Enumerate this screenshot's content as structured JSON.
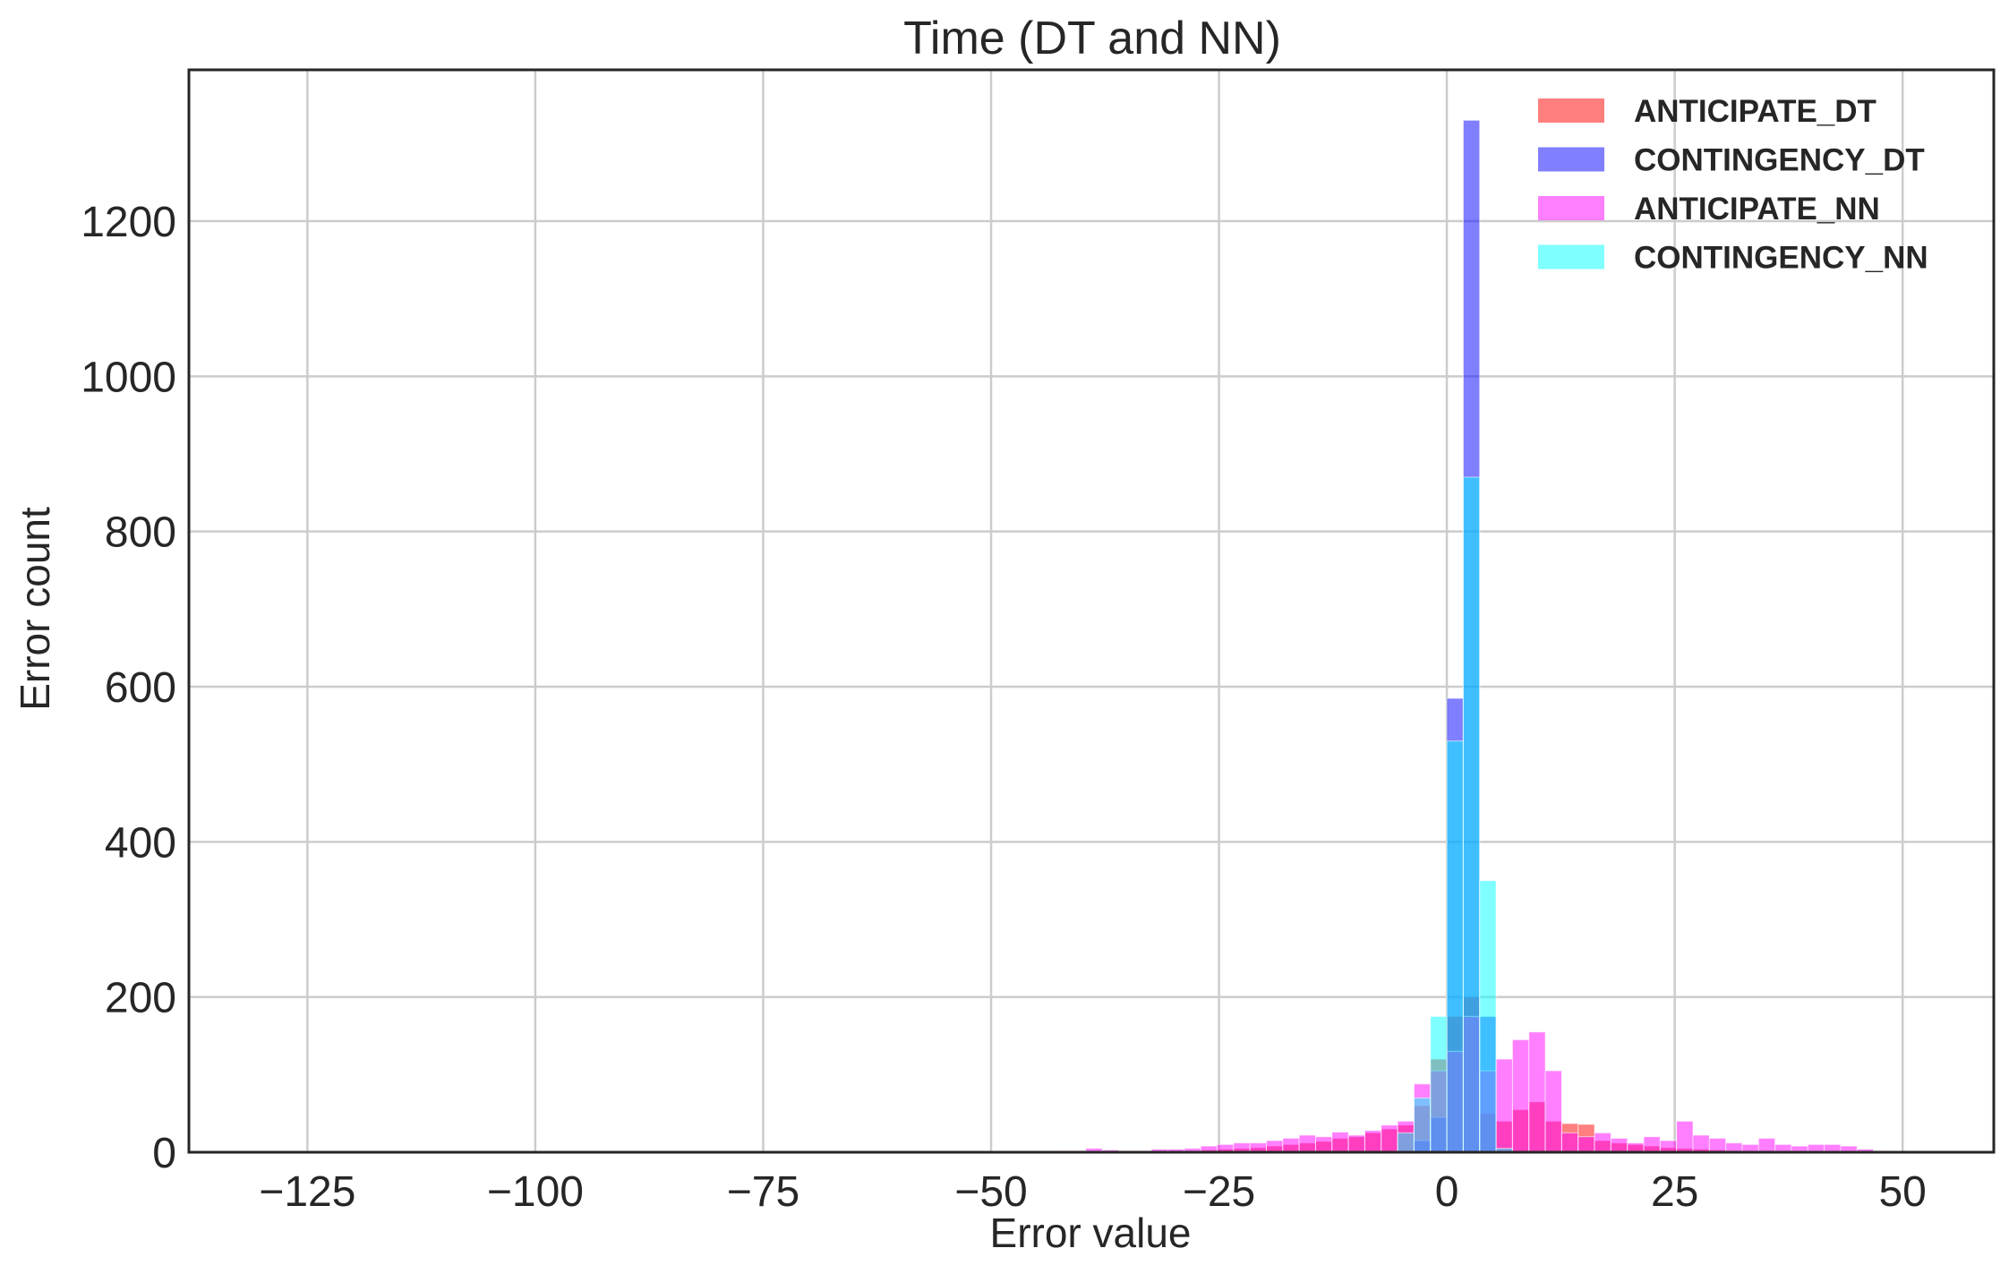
{
  "chart_data": {
    "type": "bar",
    "title": "Time (DT and NN)",
    "xlabel": "Error value",
    "ylabel": "Error count",
    "xlim": [
      -138,
      60
    ],
    "ylim": [
      0,
      1395
    ],
    "xticks": [
      -125,
      -100,
      -75,
      -50,
      -25,
      0,
      25,
      50
    ],
    "xtick_labels": [
      "−125",
      "−100",
      "−75",
      "−50",
      "−25",
      "0",
      "25",
      "50"
    ],
    "yticks": [
      0,
      200,
      400,
      600,
      800,
      1000,
      1200
    ],
    "ytick_labels": [
      "0",
      "200",
      "400",
      "600",
      "800",
      "1000",
      "1200"
    ],
    "bin_width": 1.8,
    "grid": true,
    "legend_position": "top-right",
    "series": [
      {
        "name": "ANTICIPATE_DT",
        "color": "#ff0000",
        "bins": [
          [
            -37.8,
            1
          ],
          [
            -30.6,
            1
          ],
          [
            -28.8,
            2
          ],
          [
            -27.0,
            3
          ],
          [
            -25.2,
            4
          ],
          [
            -23.4,
            5
          ],
          [
            -21.6,
            6
          ],
          [
            -19.8,
            8
          ],
          [
            -18.0,
            10
          ],
          [
            -16.2,
            12
          ],
          [
            -14.4,
            14
          ],
          [
            -12.6,
            18
          ],
          [
            -10.8,
            20
          ],
          [
            -9.0,
            25
          ],
          [
            -7.2,
            30
          ],
          [
            -5.4,
            35
          ],
          [
            -3.6,
            60
          ],
          [
            -1.8,
            120
          ],
          [
            0.0,
            175
          ],
          [
            1.8,
            200
          ],
          [
            3.6,
            50
          ],
          [
            5.4,
            40
          ],
          [
            7.2,
            55
          ],
          [
            9.0,
            65
          ],
          [
            10.8,
            40
          ],
          [
            12.6,
            37
          ],
          [
            14.4,
            36
          ],
          [
            16.2,
            15
          ],
          [
            18.0,
            12
          ],
          [
            19.8,
            10
          ],
          [
            21.6,
            8
          ],
          [
            23.4,
            6
          ],
          [
            25.2,
            5
          ],
          [
            27.0,
            4
          ],
          [
            28.8,
            3
          ],
          [
            30.6,
            2
          ],
          [
            32.4,
            2
          ],
          [
            34.2,
            2
          ],
          [
            36.0,
            1
          ],
          [
            37.8,
            1
          ],
          [
            39.6,
            1
          ]
        ]
      },
      {
        "name": "CONTINGENCY_DT",
        "color": "#0000ff",
        "bins": [
          [
            -3.6,
            15
          ],
          [
            -1.8,
            45
          ],
          [
            0.0,
            585
          ],
          [
            1.8,
            1330
          ],
          [
            3.6,
            175
          ]
        ]
      },
      {
        "name": "ANTICIPATE_NN",
        "color": "#ff00ff",
        "bins": [
          [
            -43.2,
            2
          ],
          [
            -41.4,
            2
          ],
          [
            -39.6,
            5
          ],
          [
            -37.8,
            3
          ],
          [
            -36.0,
            2
          ],
          [
            -34.2,
            2
          ],
          [
            -32.4,
            4
          ],
          [
            -30.6,
            4
          ],
          [
            -28.8,
            5
          ],
          [
            -27.0,
            8
          ],
          [
            -25.2,
            10
          ],
          [
            -23.4,
            12
          ],
          [
            -21.6,
            12
          ],
          [
            -19.8,
            15
          ],
          [
            -18.0,
            18
          ],
          [
            -16.2,
            22
          ],
          [
            -14.4,
            20
          ],
          [
            -12.6,
            26
          ],
          [
            -10.8,
            22
          ],
          [
            -9.0,
            28
          ],
          [
            -7.2,
            35
          ],
          [
            -5.4,
            40
          ],
          [
            -3.6,
            88
          ],
          [
            -1.8,
            105
          ],
          [
            0.0,
            130
          ],
          [
            1.8,
            175
          ],
          [
            3.6,
            105
          ],
          [
            5.4,
            120
          ],
          [
            7.2,
            145
          ],
          [
            9.0,
            155
          ],
          [
            10.8,
            105
          ],
          [
            12.6,
            25
          ],
          [
            14.4,
            20
          ],
          [
            16.2,
            25
          ],
          [
            18.0,
            18
          ],
          [
            19.8,
            12
          ],
          [
            21.6,
            20
          ],
          [
            23.4,
            15
          ],
          [
            25.2,
            40
          ],
          [
            27.0,
            22
          ],
          [
            28.8,
            18
          ],
          [
            30.6,
            12
          ],
          [
            32.4,
            10
          ],
          [
            34.2,
            18
          ],
          [
            36.0,
            10
          ],
          [
            37.8,
            8
          ],
          [
            39.6,
            10
          ],
          [
            41.4,
            10
          ],
          [
            43.2,
            8
          ],
          [
            45.0,
            4
          ],
          [
            46.8,
            2
          ]
        ]
      },
      {
        "name": "CONTINGENCY_NN",
        "color": "#00ffff",
        "bins": [
          [
            -5.4,
            25
          ],
          [
            -3.6,
            70
          ],
          [
            -1.8,
            175
          ],
          [
            0.0,
            530
          ],
          [
            1.8,
            870
          ],
          [
            3.6,
            350
          ],
          [
            5.4,
            5
          ]
        ]
      }
    ]
  }
}
